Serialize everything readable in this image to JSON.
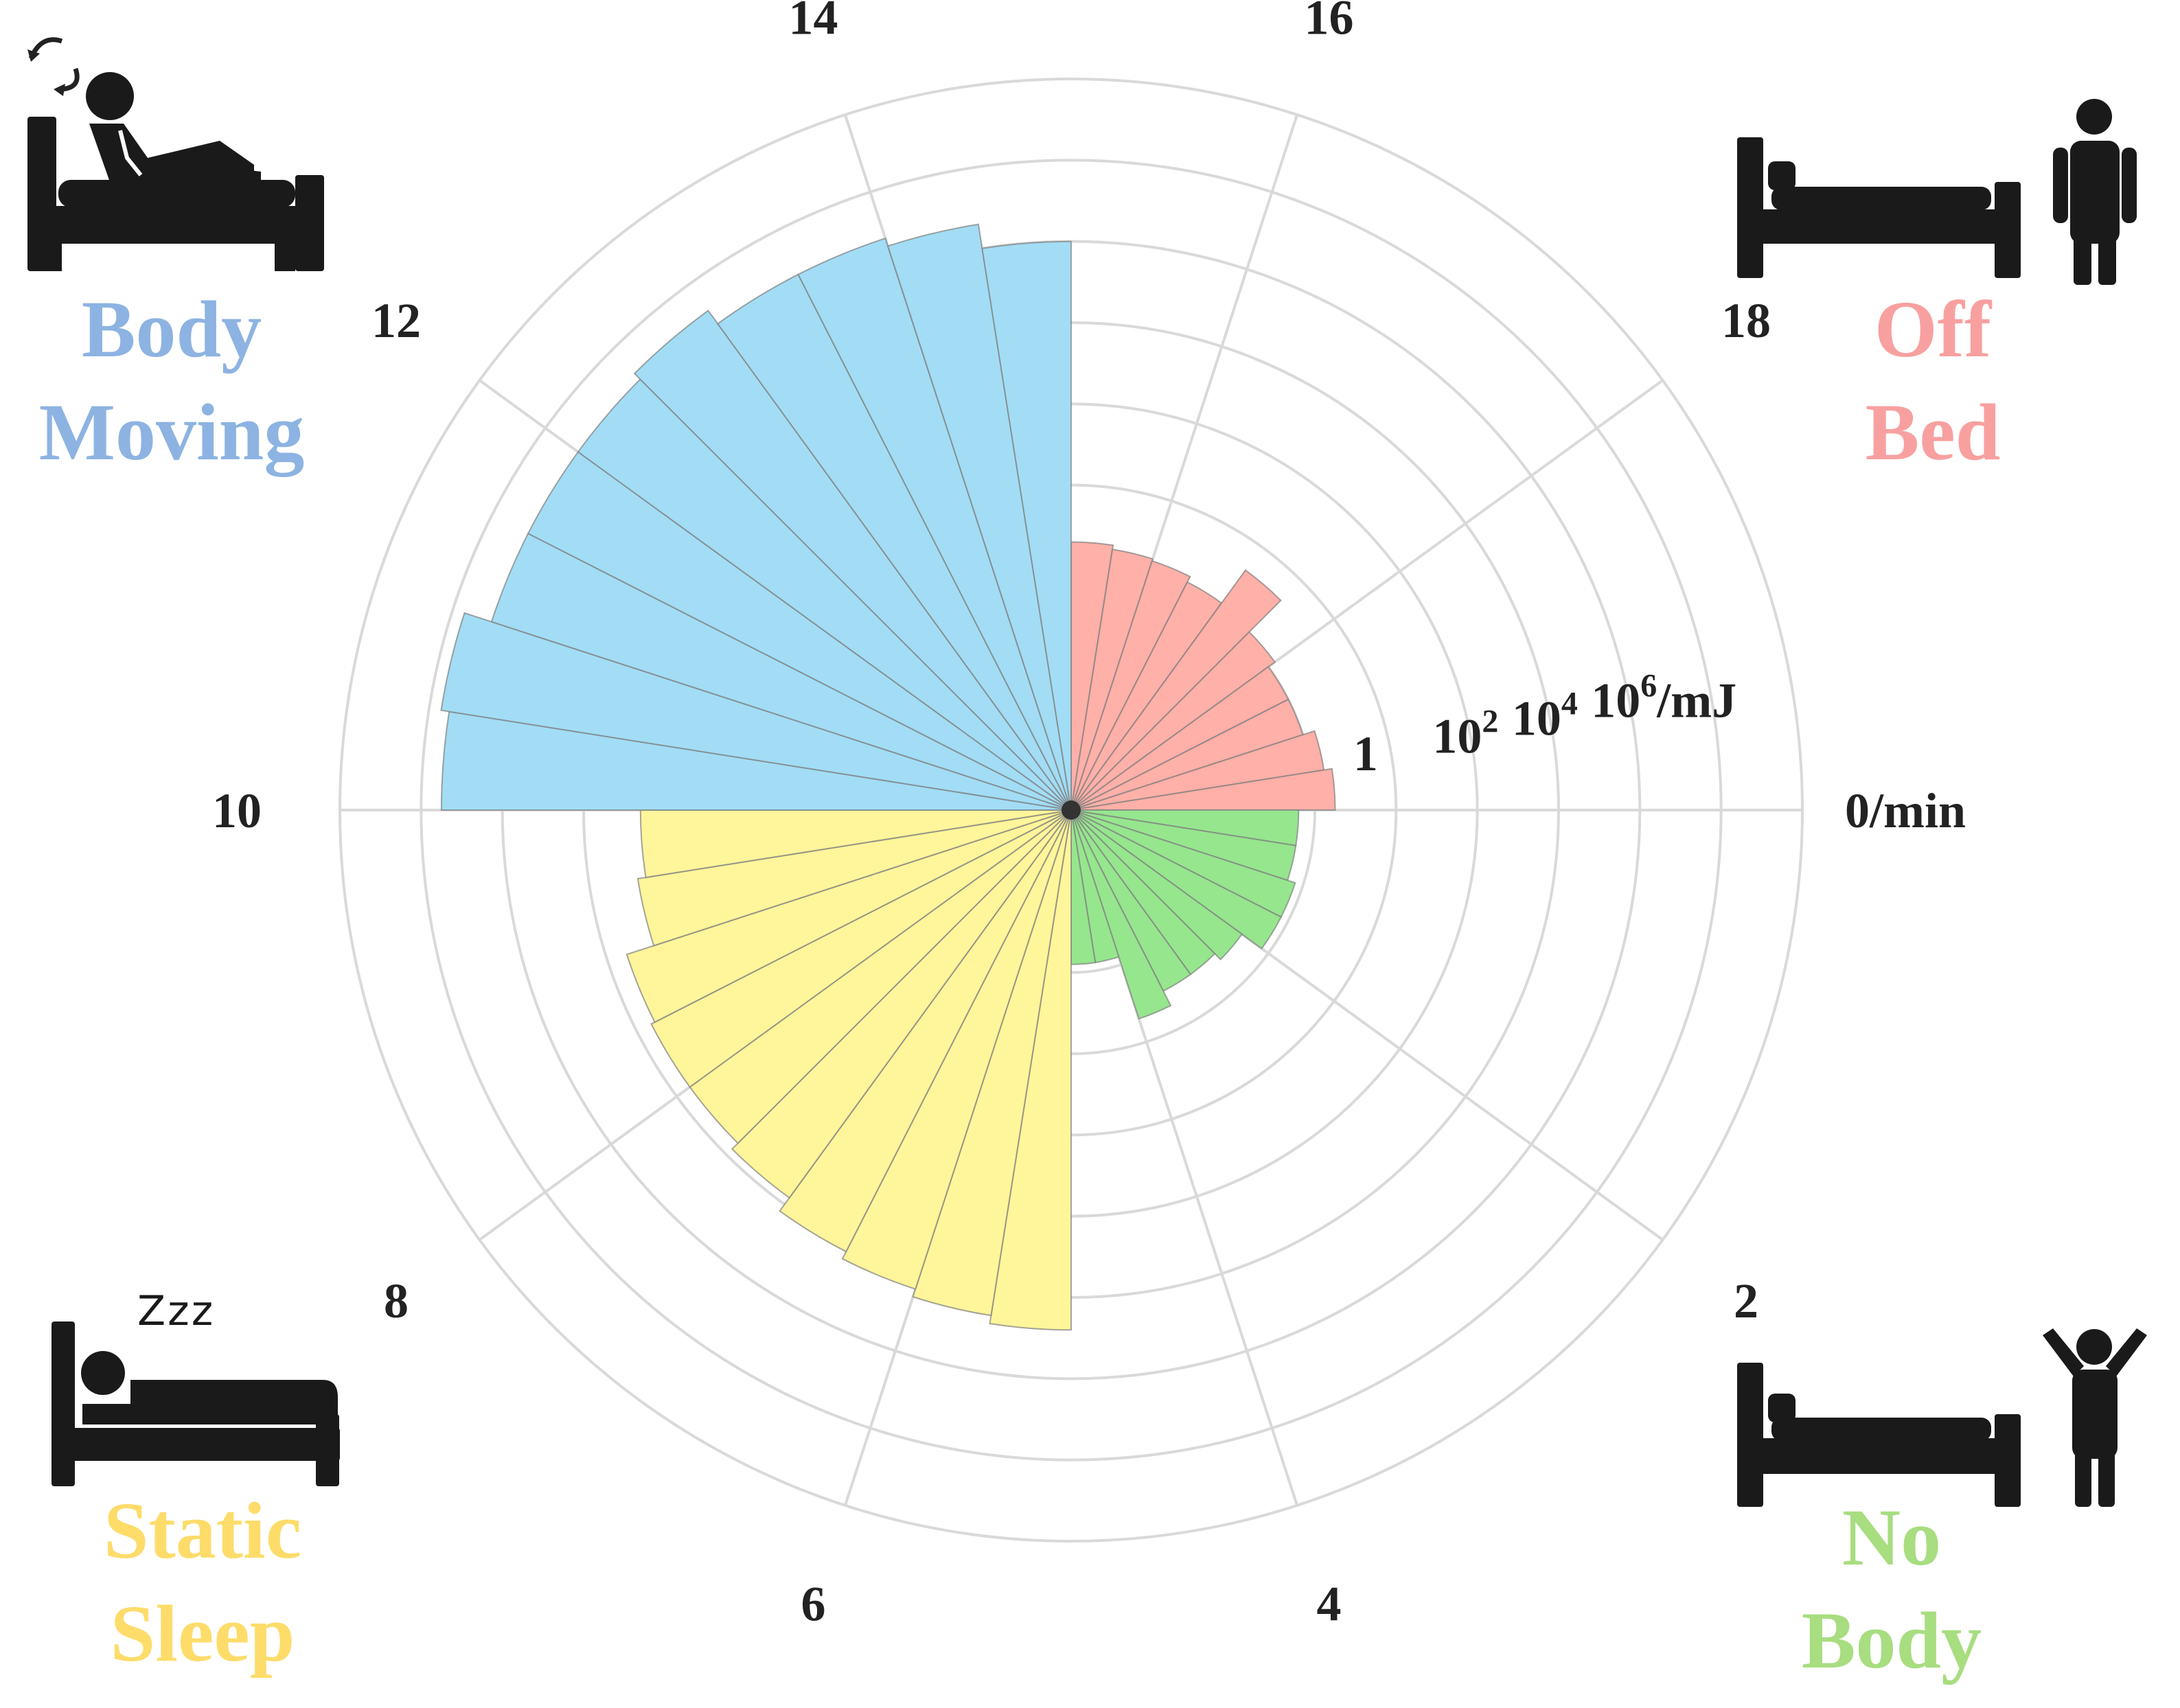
{
  "chart_data": {
    "type": "polar-bar",
    "angular_axis": {
      "ticks": [
        "0/min",
        "2",
        "4",
        "6",
        "8",
        "10",
        "12",
        "14",
        "16",
        "18"
      ],
      "range": [
        0,
        20
      ],
      "direction": "clockwise",
      "zero_at": "east"
    },
    "radial_axis": {
      "scale": "log",
      "ticks": [
        {
          "base": "1",
          "exp": "",
          "unit": ""
        },
        {
          "base": "10",
          "exp": "2",
          "unit": ""
        },
        {
          "base": "10",
          "exp": "4",
          "unit": ""
        },
        {
          "base": "10",
          "exp": "6",
          "unit": "/mJ"
        }
      ],
      "min_exponent": -6,
      "max_exponent": 12
    },
    "grid": true,
    "bin_width_min": 0.5,
    "series": [
      {
        "name": "Off Bed",
        "color": "#FFB0A8",
        "start_min": 15,
        "log10_values": [
          0.6,
          0.5,
          0.45,
          0.3,
          1.3,
          0.2,
          0.0,
          0.0,
          0.3,
          0.5
        ]
      },
      {
        "name": "No Body",
        "color": "#96E68E",
        "start_min": 0,
        "log10_values": [
          -0.4,
          -0.4,
          -0.2,
          -0.2,
          -0.8,
          -1.0,
          -1.0,
          -0.6,
          -2.2,
          -2.2
        ]
      },
      {
        "name": "Static Sleep",
        "color": "#FFF59A",
        "start_min": 5,
        "log10_values": [
          6.8,
          6.6,
          6.4,
          6.2,
          5.8,
          5.6,
          5.6,
          5.5,
          4.8,
          4.6
        ]
      },
      {
        "name": "Body Moving",
        "color": "#A2DDF5",
        "start_min": 10,
        "log10_values": [
          9.5,
          9.7,
          9.0,
          9.0,
          9.0,
          9.2,
          8.8,
          8.8,
          8.6,
          8.0
        ]
      }
    ]
  },
  "quadrants": {
    "body_moving": {
      "line1": "Body",
      "line2": "Moving",
      "color": "#8DB3E2"
    },
    "off_bed": {
      "line1": "Off",
      "line2": "Bed",
      "color": "#F8A0A0"
    },
    "static_sleep": {
      "line1": "Static",
      "line2": "Sleep",
      "color": "#FDDC6A"
    },
    "no_body": {
      "line1": "No",
      "line2": "Body",
      "color": "#A8DD80"
    }
  },
  "icons": {
    "body_moving": "person-lying-in-bed-turning-icon",
    "off_bed": "empty-bed-person-standing-icon",
    "static_sleep": "person-sleeping-in-bed-icon",
    "no_body": "empty-bed-person-arms-raised-icon",
    "sleep_glyph": "Z z z"
  }
}
